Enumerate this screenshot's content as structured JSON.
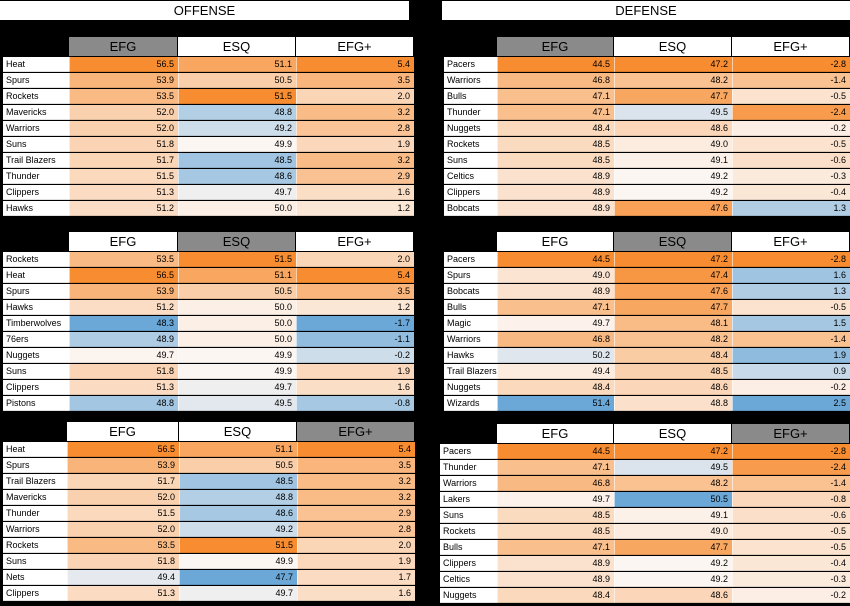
{
  "sections": {
    "offense": "OFFENSE",
    "defense": "DEFENSE"
  },
  "columns": [
    "EFG",
    "ESQ",
    "EFG+"
  ],
  "colors": {
    "high": "#f78c30",
    "mid": "#fcf6f2",
    "low": "#6ba8d8",
    "header_active": "#8a8a8a"
  },
  "chart_data": [
    {
      "type": "table",
      "side": "offense",
      "sorted_by": "EFG",
      "columns": [
        "EFG",
        "ESQ",
        "EFG+"
      ],
      "rows": [
        {
          "team": "Heat",
          "values": [
            56.5,
            51.1,
            5.4
          ]
        },
        {
          "team": "Spurs",
          "values": [
            53.9,
            50.5,
            3.5
          ]
        },
        {
          "team": "Rockets",
          "values": [
            53.5,
            51.5,
            2.0
          ]
        },
        {
          "team": "Mavericks",
          "values": [
            52.0,
            48.8,
            3.2
          ]
        },
        {
          "team": "Warriors",
          "values": [
            52.0,
            49.2,
            2.8
          ]
        },
        {
          "team": "Suns",
          "values": [
            51.8,
            49.9,
            1.9
          ]
        },
        {
          "team": "Trail Blazers",
          "values": [
            51.7,
            48.5,
            3.2
          ]
        },
        {
          "team": "Thunder",
          "values": [
            51.5,
            48.6,
            2.9
          ]
        },
        {
          "team": "Clippers",
          "values": [
            51.3,
            49.7,
            1.6
          ]
        },
        {
          "team": "Hawks",
          "values": [
            51.2,
            50.0,
            1.2
          ]
        }
      ]
    },
    {
      "type": "table",
      "side": "defense",
      "sorted_by": "EFG",
      "columns": [
        "EFG",
        "ESQ",
        "EFG+"
      ],
      "rows": [
        {
          "team": "Pacers",
          "values": [
            44.5,
            47.2,
            -2.8
          ]
        },
        {
          "team": "Warriors",
          "values": [
            46.8,
            48.2,
            -1.4
          ]
        },
        {
          "team": "Bulls",
          "values": [
            47.1,
            47.7,
            -0.5
          ]
        },
        {
          "team": "Thunder",
          "values": [
            47.1,
            49.5,
            -2.4
          ]
        },
        {
          "team": "Nuggets",
          "values": [
            48.4,
            48.6,
            -0.2
          ]
        },
        {
          "team": "Rockets",
          "values": [
            48.5,
            49.0,
            -0.5
          ]
        },
        {
          "team": "Suns",
          "values": [
            48.5,
            49.1,
            -0.6
          ]
        },
        {
          "team": "Celtics",
          "values": [
            48.9,
            49.2,
            -0.3
          ]
        },
        {
          "team": "Clippers",
          "values": [
            48.9,
            49.2,
            -0.4
          ]
        },
        {
          "team": "Bobcats",
          "values": [
            48.9,
            47.6,
            1.3
          ]
        }
      ]
    },
    {
      "type": "table",
      "side": "offense",
      "sorted_by": "ESQ",
      "columns": [
        "EFG",
        "ESQ",
        "EFG+"
      ],
      "rows": [
        {
          "team": "Rockets",
          "values": [
            53.5,
            51.5,
            2.0
          ]
        },
        {
          "team": "Heat",
          "values": [
            56.5,
            51.1,
            5.4
          ]
        },
        {
          "team": "Spurs",
          "values": [
            53.9,
            50.5,
            3.5
          ]
        },
        {
          "team": "Hawks",
          "values": [
            51.2,
            50.0,
            1.2
          ]
        },
        {
          "team": "Timberwolves",
          "values": [
            48.3,
            50.0,
            -1.7
          ]
        },
        {
          "team": "76ers",
          "values": [
            48.9,
            50.0,
            -1.1
          ]
        },
        {
          "team": "Nuggets",
          "values": [
            49.7,
            49.9,
            -0.2
          ]
        },
        {
          "team": "Suns",
          "values": [
            51.8,
            49.9,
            1.9
          ]
        },
        {
          "team": "Clippers",
          "values": [
            51.3,
            49.7,
            1.6
          ]
        },
        {
          "team": "Pistons",
          "values": [
            48.8,
            49.5,
            -0.8
          ]
        }
      ]
    },
    {
      "type": "table",
      "side": "defense",
      "sorted_by": "ESQ",
      "columns": [
        "EFG",
        "ESQ",
        "EFG+"
      ],
      "rows": [
        {
          "team": "Pacers",
          "values": [
            44.5,
            47.2,
            -2.8
          ]
        },
        {
          "team": "Spurs",
          "values": [
            49.0,
            47.4,
            1.6
          ]
        },
        {
          "team": "Bobcats",
          "values": [
            48.9,
            47.6,
            1.3
          ]
        },
        {
          "team": "Bulls",
          "values": [
            47.1,
            47.7,
            -0.5
          ]
        },
        {
          "team": "Magic",
          "values": [
            49.7,
            48.1,
            1.5
          ]
        },
        {
          "team": "Warriors",
          "values": [
            46.8,
            48.2,
            -1.4
          ]
        },
        {
          "team": "Hawks",
          "values": [
            50.2,
            48.4,
            1.9
          ]
        },
        {
          "team": "Trail Blazers",
          "values": [
            49.4,
            48.5,
            0.9
          ]
        },
        {
          "team": "Nuggets",
          "values": [
            48.4,
            48.6,
            -0.2
          ]
        },
        {
          "team": "Wizards",
          "values": [
            51.4,
            48.8,
            2.5
          ]
        }
      ]
    },
    {
      "type": "table",
      "side": "offense",
      "sorted_by": "EFG+",
      "columns": [
        "EFG",
        "ESQ",
        "EFG+"
      ],
      "rows": [
        {
          "team": "Heat",
          "values": [
            56.5,
            51.1,
            5.4
          ]
        },
        {
          "team": "Spurs",
          "values": [
            53.9,
            50.5,
            3.5
          ]
        },
        {
          "team": "Trail Blazers",
          "values": [
            51.7,
            48.5,
            3.2
          ]
        },
        {
          "team": "Mavericks",
          "values": [
            52.0,
            48.8,
            3.2
          ]
        },
        {
          "team": "Thunder",
          "values": [
            51.5,
            48.6,
            2.9
          ]
        },
        {
          "team": "Warriors",
          "values": [
            52.0,
            49.2,
            2.8
          ]
        },
        {
          "team": "Rockets",
          "values": [
            53.5,
            51.5,
            2.0
          ]
        },
        {
          "team": "Suns",
          "values": [
            51.8,
            49.9,
            1.9
          ]
        },
        {
          "team": "Nets",
          "values": [
            49.4,
            47.7,
            1.7
          ]
        },
        {
          "team": "Clippers",
          "values": [
            51.3,
            49.7,
            1.6
          ]
        }
      ]
    },
    {
      "type": "table",
      "side": "defense",
      "sorted_by": "EFG+",
      "columns": [
        "EFG",
        "ESQ",
        "EFG+"
      ],
      "rows": [
        {
          "team": "Pacers",
          "values": [
            44.5,
            47.2,
            -2.8
          ]
        },
        {
          "team": "Thunder",
          "values": [
            47.1,
            49.5,
            -2.4
          ]
        },
        {
          "team": "Warriors",
          "values": [
            46.8,
            48.2,
            -1.4
          ]
        },
        {
          "team": "Lakers",
          "values": [
            49.7,
            50.5,
            -0.8
          ]
        },
        {
          "team": "Suns",
          "values": [
            48.5,
            49.1,
            -0.6
          ]
        },
        {
          "team": "Rockets",
          "values": [
            48.5,
            49.0,
            -0.5
          ]
        },
        {
          "team": "Bulls",
          "values": [
            47.1,
            47.7,
            -0.5
          ]
        },
        {
          "team": "Clippers",
          "values": [
            48.9,
            49.2,
            -0.4
          ]
        },
        {
          "team": "Celtics",
          "values": [
            48.9,
            49.2,
            -0.3
          ]
        },
        {
          "team": "Nuggets",
          "values": [
            48.4,
            48.6,
            -0.2
          ]
        }
      ]
    }
  ]
}
